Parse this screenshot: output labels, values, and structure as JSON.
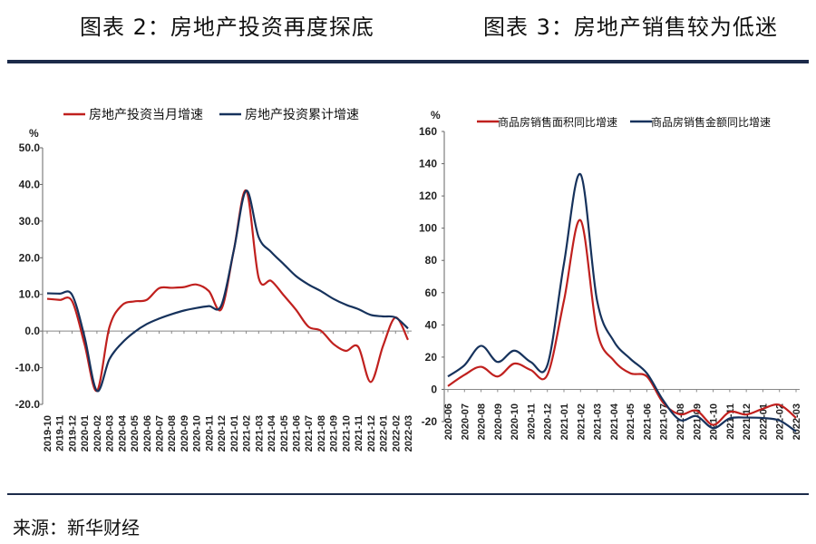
{
  "titles": {
    "left": "图表 2：房地产投资再度探底",
    "right": "图表 3：房地产销售较为低迷"
  },
  "source": "来源：新华财经",
  "colors": {
    "red": "#c0201e",
    "navy": "#16325c",
    "rule": "#1c2b4a"
  },
  "chart_data": [
    {
      "type": "line",
      "unit_label": "%",
      "ylim": [
        -20,
        50
      ],
      "yticks": [
        -20,
        -10,
        0,
        10,
        20,
        30,
        40,
        50
      ],
      "ytick_labels": [
        "-20.0",
        "-10.0",
        "0.0",
        "10.0",
        "20.0",
        "30.0",
        "40.0",
        "50.0"
      ],
      "categories": [
        "2019-10",
        "2019-11",
        "2019-12",
        "2020-01",
        "2020-02",
        "2020-03",
        "2020-04",
        "2020-05",
        "2020-06",
        "2020-07",
        "2020-08",
        "2020-09",
        "2020-10",
        "2020-11",
        "2020-12",
        "2021-01",
        "2021-02",
        "2021-03",
        "2021-04",
        "2021-05",
        "2021-06",
        "2021-07",
        "2021-08",
        "2021-09",
        "2021-10",
        "2021-11",
        "2021-12",
        "2022-01",
        "2022-02",
        "2022-03"
      ],
      "series": [
        {
          "name": "房地产投资当月增速",
          "color": "red",
          "values": [
            8.8,
            8.5,
            8.2,
            -3.5,
            -16.3,
            1.0,
            7.0,
            8.1,
            8.5,
            11.7,
            11.8,
            12.0,
            12.7,
            10.9,
            6.0,
            22.0,
            38.3,
            14.5,
            13.7,
            9.8,
            5.8,
            1.2,
            0.1,
            -3.5,
            -5.4,
            -4.3,
            -13.9,
            -4.0,
            3.7,
            -2.4
          ]
        },
        {
          "name": "房地产投资累计增速",
          "color": "navy",
          "values": [
            10.3,
            10.2,
            9.9,
            -1.5,
            -16.3,
            -7.7,
            -3.3,
            -0.3,
            1.9,
            3.4,
            4.6,
            5.6,
            6.3,
            6.8,
            7.0,
            22.0,
            38.3,
            25.6,
            21.6,
            18.3,
            15.0,
            12.7,
            10.9,
            8.8,
            7.2,
            6.0,
            4.4,
            4.0,
            3.7,
            0.7
          ]
        }
      ]
    },
    {
      "type": "line",
      "unit_label": "%",
      "ylim": [
        -20,
        160
      ],
      "yticks": [
        -20,
        0,
        20,
        40,
        60,
        80,
        100,
        120,
        140,
        160
      ],
      "ytick_labels": [
        "-20",
        "0",
        "20",
        "40",
        "60",
        "80",
        "100",
        "120",
        "140",
        "160"
      ],
      "categories": [
        "2020-06",
        "2020-07",
        "2020-08",
        "2020-09",
        "2020-10",
        "2020-11",
        "2020-12",
        "2021-01",
        "2021-02",
        "2021-03",
        "2021-04",
        "2021-05",
        "2021-06",
        "2021-07",
        "2021-08",
        "2021-09",
        "2021-10",
        "2021-11",
        "2021-12",
        "2022-01",
        "2022-02",
        "2022-03"
      ],
      "series": [
        {
          "name": "商品房销售面积同比增速",
          "color": "red",
          "values": [
            2.0,
            9.0,
            14.0,
            8.0,
            16.0,
            12.0,
            9.0,
            55.0,
            104.9,
            36.0,
            18.0,
            10.0,
            8.0,
            -8.5,
            -15.5,
            -13.2,
            -22.0,
            -14.0,
            -15.6,
            -12.0,
            -9.6,
            -17.7
          ]
        },
        {
          "name": "商品房销售金额同比增速",
          "color": "navy",
          "values": [
            8.0,
            15.0,
            27.0,
            17.0,
            24.0,
            17.0,
            15.0,
            78.0,
            133.4,
            55.0,
            30.0,
            19.0,
            10.0,
            -7.0,
            -19.0,
            -16.6,
            -24.0,
            -18.0,
            -17.5,
            -17.8,
            -19.3,
            -26.2
          ]
        }
      ]
    }
  ]
}
